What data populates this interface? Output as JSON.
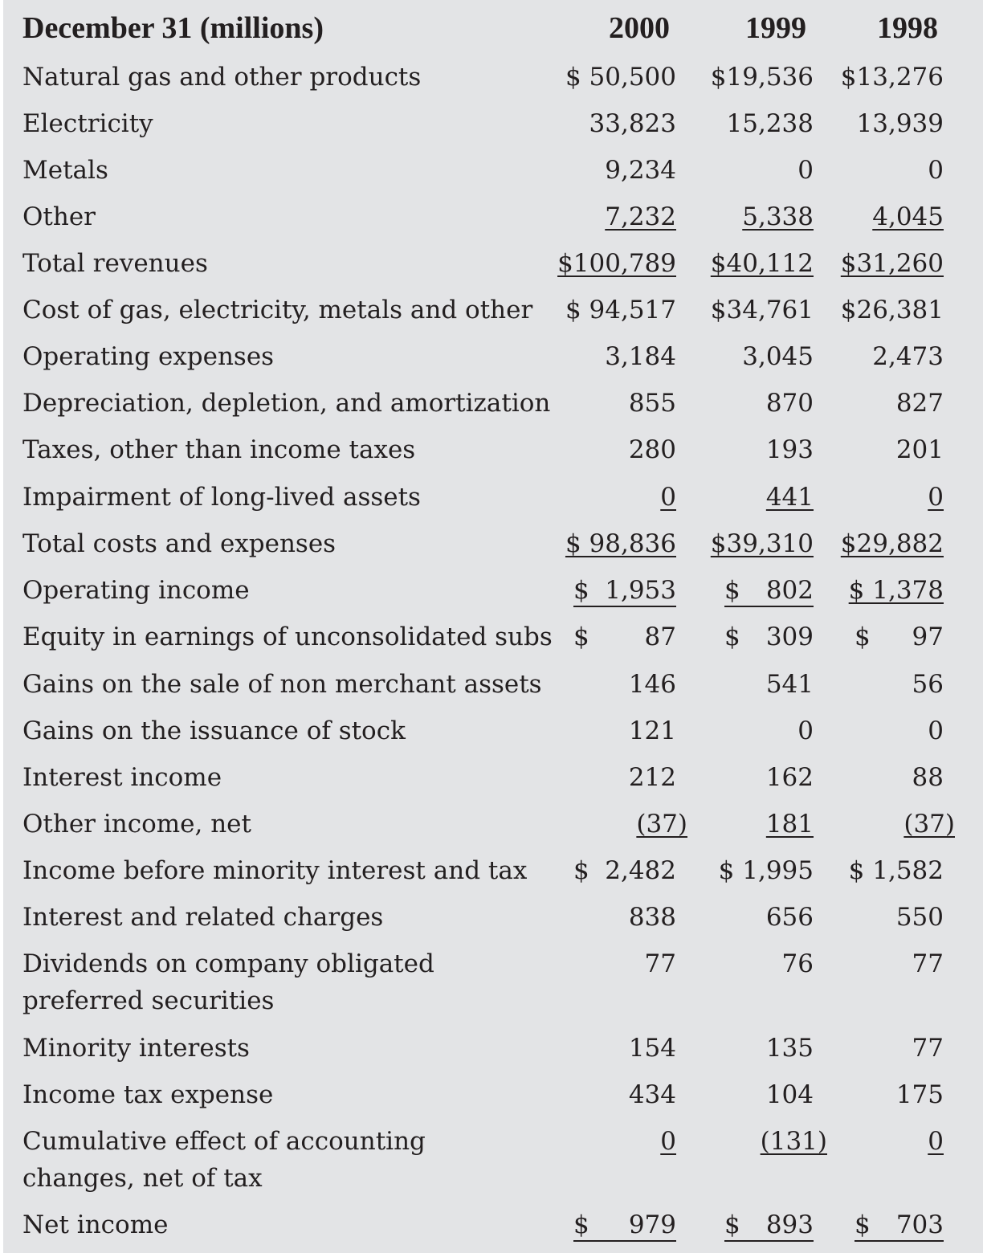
{
  "table": {
    "header": {
      "title": "December 31 (millions)",
      "col_2000": "2000",
      "col_1999": "1999",
      "col_1998": "1998"
    },
    "rows": [
      {
        "label": "Natural gas and other products",
        "v2000": "$ 50,500",
        "v1999": "$19,536",
        "v1998": "$13,276"
      },
      {
        "label": "Electricity",
        "v2000": "33,823",
        "v1999": "15,238",
        "v1998": "13,939"
      },
      {
        "label": "Metals",
        "v2000": "9,234",
        "v1999": "0",
        "v1998": "0"
      },
      {
        "label": "Other",
        "v2000": "7,232",
        "v1999": "5,338",
        "v1998": "4,045"
      },
      {
        "label": "Total revenues",
        "v2000": "$100,789",
        "v1999": "$40,112",
        "v1998": "$31,260"
      },
      {
        "label": "Cost of gas, electricity, metals and other",
        "v2000": "$ 94,517",
        "v1999": "$34,761",
        "v1998": "$26,381"
      },
      {
        "label": "Operating expenses",
        "v2000": "3,184",
        "v1999": "3,045",
        "v1998": "2,473"
      },
      {
        "label": "Depreciation, depletion, and amortization",
        "v2000": "855",
        "v1999": "870",
        "v1998": "827"
      },
      {
        "label": "Taxes, other than income taxes",
        "v2000": "280",
        "v1999": "193",
        "v1998": "201"
      },
      {
        "label": "Impairment of long-lived assets",
        "v2000": "0",
        "v1999": "441",
        "v1998": "0"
      },
      {
        "label": "Total costs and expenses",
        "v2000": "$ 98,836",
        "v1999": "$39,310",
        "v1998": "$29,882"
      },
      {
        "label": "Operating income",
        "v2000": "1,953",
        "v1999": "802",
        "v1998": "$ 1,378"
      },
      {
        "label": "Equity in earnings of unconsolidated subs",
        "v2000": "87",
        "v1999": "309",
        "v1998": "97"
      },
      {
        "label": "Gains on the sale of non merchant assets",
        "v2000": "146",
        "v1999": "541",
        "v1998": "56"
      },
      {
        "label": "Gains on the issuance of stock",
        "v2000": "121",
        "v1999": "0",
        "v1998": "0"
      },
      {
        "label": "Interest income",
        "v2000": "212",
        "v1999": "162",
        "v1998": "88"
      },
      {
        "label": "Other income, net",
        "v2000": "(37)",
        "v1999": "181",
        "v1998": "(37)"
      },
      {
        "label": "Income before minority interest and tax",
        "v2000": "2,482",
        "v1999": "$ 1,995",
        "v1998": "$ 1,582"
      },
      {
        "label": "Interest and related charges",
        "v2000": "838",
        "v1999": "656",
        "v1998": "550"
      },
      {
        "label": "Dividends on company obligated preferred securities",
        "v2000": "77",
        "v1999": "76",
        "v1998": "77"
      },
      {
        "label": "Minority interests",
        "v2000": "154",
        "v1999": "135",
        "v1998": "77"
      },
      {
        "label": "Income tax expense",
        "v2000": "434",
        "v1999": "104",
        "v1998": "175"
      },
      {
        "label": "Cumulative effect of accounting changes, net of tax",
        "v2000": "0",
        "v1999": "(131)",
        "v1998": "0"
      },
      {
        "label": "Net income",
        "v2000": "979",
        "v1999": "893",
        "v1998": "703"
      }
    ],
    "dollar_sign": "$"
  }
}
